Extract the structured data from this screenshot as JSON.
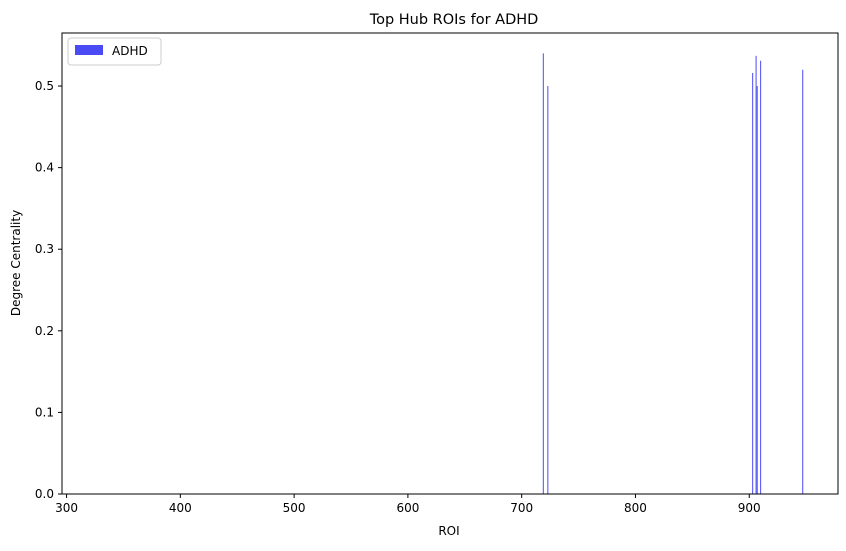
{
  "chart_data": {
    "type": "bar",
    "title": "Top Hub ROIs for ADHD",
    "xlabel": "ROI",
    "ylabel": "Degree Centrality",
    "xlim": [
      296,
      978
    ],
    "ylim": [
      0,
      0.565
    ],
    "xticks": [
      300,
      400,
      500,
      600,
      700,
      800,
      900
    ],
    "yticks": [
      0.0,
      0.1,
      0.2,
      0.3,
      0.4,
      0.5
    ],
    "ytick_labels": [
      "0.0",
      "0.1",
      "0.2",
      "0.3",
      "0.4",
      "0.5"
    ],
    "grid": false,
    "legend_position": "top-left",
    "series": [
      {
        "name": "ADHD",
        "color": "#4b4bf5",
        "x": [
          719,
          723,
          903,
          906,
          907,
          910,
          947
        ],
        "values": [
          0.54,
          0.5,
          0.516,
          0.537,
          0.5,
          0.531,
          0.52
        ]
      }
    ]
  }
}
